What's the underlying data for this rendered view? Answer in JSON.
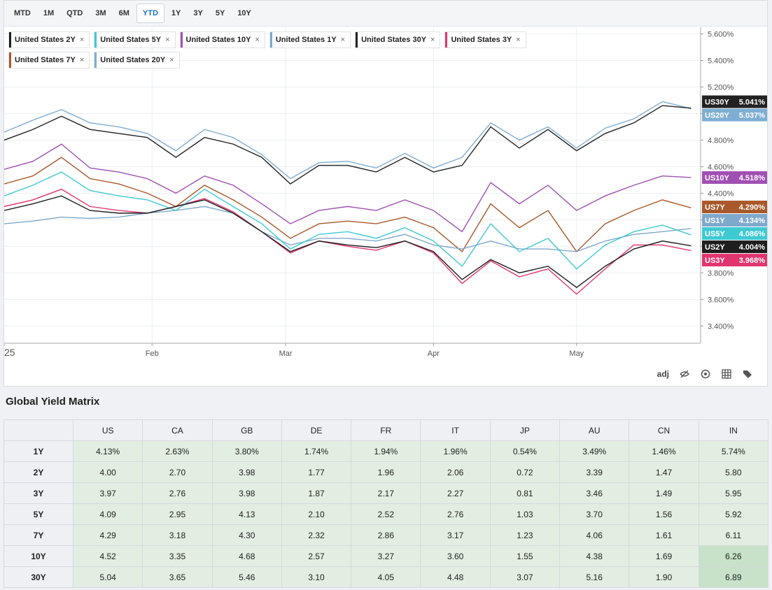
{
  "range_buttons": [
    "MTD",
    "1M",
    "QTD",
    "3M",
    "6M",
    "YTD",
    "1Y",
    "3Y",
    "5Y",
    "10Y"
  ],
  "selected_range": 5,
  "chart_data": {
    "type": "line",
    "x": [
      0,
      6,
      12,
      18,
      24,
      30,
      36,
      42,
      48,
      54,
      60,
      66,
      72,
      78,
      84,
      90,
      96,
      102,
      108,
      114,
      120,
      126,
      132,
      138,
      144
    ],
    "xlim": [
      0,
      146
    ],
    "xticks": [
      {
        "value": 0,
        "label": "25"
      },
      {
        "value": 31,
        "label": "Feb"
      },
      {
        "value": 59,
        "label": "Mar"
      },
      {
        "value": 90,
        "label": "Apr"
      },
      {
        "value": 120,
        "label": "May"
      }
    ],
    "ylim": [
      3.27,
      5.65
    ],
    "yticks": [
      {
        "value": 3.4,
        "label": "3.400%"
      },
      {
        "value": 3.6,
        "label": "3.600%"
      },
      {
        "value": 3.8,
        "label": "3.800%"
      },
      {
        "value": 4.0,
        "label": "4.000%"
      },
      {
        "value": 4.2,
        "label": "4.200%"
      },
      {
        "value": 4.4,
        "label": "4.400%"
      },
      {
        "value": 4.6,
        "label": "4.600%"
      },
      {
        "value": 4.8,
        "label": "4.800%"
      },
      {
        "value": 5.0,
        "label": "5.000%"
      },
      {
        "value": 5.2,
        "label": "5.200%"
      },
      {
        "value": 5.4,
        "label": "5.400%"
      },
      {
        "value": 5.6,
        "label": "5.600%"
      }
    ],
    "grid": true,
    "series": [
      {
        "name": "United States 2Y",
        "code": "US2Y",
        "end_label": "4.004%",
        "color": "#1e1e1e",
        "values": [
          4.27,
          4.32,
          4.38,
          4.27,
          4.25,
          4.25,
          4.3,
          4.35,
          4.25,
          4.11,
          3.96,
          4.04,
          4.01,
          3.99,
          4.04,
          3.96,
          3.75,
          3.9,
          3.8,
          3.85,
          3.69,
          3.85,
          3.98,
          4.04,
          4.004
        ]
      },
      {
        "name": "United States 5Y",
        "code": "US5Y",
        "end_label": "4.086%",
        "color": "#3fc9d2",
        "values": [
          4.38,
          4.46,
          4.56,
          4.42,
          4.38,
          4.35,
          4.27,
          4.43,
          4.3,
          4.17,
          3.98,
          4.09,
          4.11,
          4.06,
          4.14,
          4.04,
          3.85,
          4.17,
          3.96,
          4.06,
          3.83,
          4.01,
          4.11,
          4.16,
          4.086
        ]
      },
      {
        "name": "United States 10Y",
        "code": "US10Y",
        "end_label": "4.518%",
        "color": "#a04fb3",
        "values": [
          4.58,
          4.64,
          4.77,
          4.59,
          4.56,
          4.51,
          4.4,
          4.53,
          4.46,
          4.32,
          4.17,
          4.27,
          4.3,
          4.27,
          4.35,
          4.27,
          4.11,
          4.48,
          4.32,
          4.46,
          4.27,
          4.38,
          4.46,
          4.53,
          4.518
        ]
      },
      {
        "name": "United States 1Y",
        "code": "US1Y",
        "end_label": "4.134%",
        "color": "#7fa9cc",
        "values": [
          4.17,
          4.19,
          4.22,
          4.21,
          4.22,
          4.25,
          4.27,
          4.3,
          4.25,
          4.11,
          4.01,
          4.06,
          4.06,
          4.04,
          4.09,
          4.01,
          3.98,
          4.04,
          3.98,
          3.98,
          3.96,
          4.04,
          4.09,
          4.11,
          4.134
        ]
      },
      {
        "name": "United States 30Y",
        "code": "US30Y",
        "end_label": "5.041%",
        "color": "#222222",
        "values": [
          4.8,
          4.88,
          4.98,
          4.88,
          4.85,
          4.82,
          4.67,
          4.82,
          4.77,
          4.67,
          4.47,
          4.61,
          4.61,
          4.56,
          4.67,
          4.56,
          4.61,
          4.9,
          4.74,
          4.88,
          4.72,
          4.85,
          4.93,
          5.06,
          5.041
        ]
      },
      {
        "name": "United States 3Y",
        "code": "US3Y",
        "end_label": "3.968%",
        "color": "#e0356e",
        "values": [
          4.3,
          4.35,
          4.43,
          4.3,
          4.27,
          4.25,
          4.3,
          4.36,
          4.26,
          4.11,
          3.95,
          4.04,
          4.0,
          3.97,
          4.04,
          3.95,
          3.72,
          3.89,
          3.77,
          3.83,
          3.64,
          3.83,
          4.01,
          4.01,
          3.968
        ]
      },
      {
        "name": "United States 7Y",
        "code": "US7Y",
        "end_label": "4.290%",
        "color": "#a8582a",
        "values": [
          4.47,
          4.53,
          4.67,
          4.51,
          4.47,
          4.4,
          4.3,
          4.46,
          4.35,
          4.22,
          4.06,
          4.17,
          4.19,
          4.17,
          4.22,
          4.14,
          3.96,
          4.32,
          4.14,
          4.27,
          3.96,
          4.17,
          4.27,
          4.35,
          4.29
        ]
      },
      {
        "name": "United States 20Y",
        "code": "US20Y",
        "end_label": "5.037%",
        "color": "#7eaed3",
        "values": [
          4.86,
          4.95,
          5.03,
          4.93,
          4.9,
          4.85,
          4.72,
          4.88,
          4.82,
          4.69,
          4.51,
          4.63,
          4.64,
          4.59,
          4.7,
          4.59,
          4.67,
          4.93,
          4.8,
          4.9,
          4.74,
          4.89,
          4.96,
          5.09,
          5.037
        ]
      }
    ]
  },
  "toolbar": {
    "adj": "adj"
  },
  "matrix": {
    "title": "Global Yield Matrix",
    "columns": [
      "US",
      "CA",
      "GB",
      "DE",
      "FR",
      "IT",
      "JP",
      "AU",
      "CN",
      "IN"
    ],
    "rows": [
      {
        "label": "1Y",
        "cells": [
          "4.13%",
          "2.63%",
          "3.80%",
          "1.74%",
          "1.94%",
          "1.96%",
          "0.54%",
          "3.49%",
          "1.46%",
          "5.74%"
        ]
      },
      {
        "label": "2Y",
        "cells": [
          "4.00",
          "2.70",
          "3.98",
          "1.77",
          "1.96",
          "2.06",
          "0.72",
          "3.39",
          "1.47",
          "5.80"
        ]
      },
      {
        "label": "3Y",
        "cells": [
          "3.97",
          "2.76",
          "3.98",
          "1.87",
          "2.17",
          "2.27",
          "0.81",
          "3.46",
          "1.49",
          "5.95"
        ]
      },
      {
        "label": "5Y",
        "cells": [
          "4.09",
          "2.95",
          "4.13",
          "2.10",
          "2.52",
          "2.76",
          "1.03",
          "3.70",
          "1.56",
          "5.92"
        ]
      },
      {
        "label": "7Y",
        "cells": [
          "4.29",
          "3.18",
          "4.30",
          "2.32",
          "2.86",
          "3.17",
          "1.23",
          "4.06",
          "1.61",
          "6.11"
        ]
      },
      {
        "label": "10Y",
        "cells": [
          "4.52",
          "3.35",
          "4.68",
          "2.57",
          "3.27",
          "3.60",
          "1.55",
          "4.38",
          "1.69",
          "6.26"
        ]
      },
      {
        "label": "30Y",
        "cells": [
          "5.04",
          "3.65",
          "5.46",
          "3.10",
          "4.05",
          "4.48",
          "3.07",
          "5.16",
          "1.90",
          "6.89"
        ]
      }
    ],
    "cell_color": "#e1eee1",
    "highlight_color": "#c7e2c9",
    "highlighted": [
      [
        5,
        9
      ],
      [
        6,
        9
      ]
    ]
  }
}
